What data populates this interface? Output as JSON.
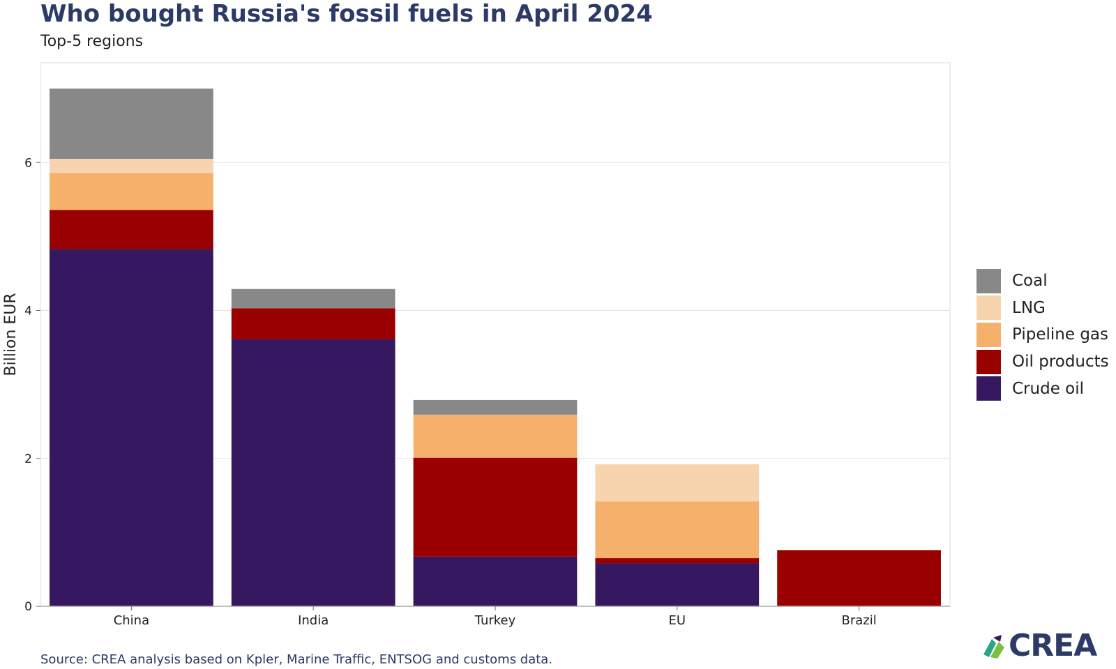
{
  "title": "Who bought Russia's fossil fuels in April 2024",
  "subtitle": "Top-5 regions",
  "source": "Source: CREA analysis based on Kpler, Marine Traffic, ENTSOG and customs data.",
  "logo_text": "CREA",
  "colors": {
    "coal": "#888888",
    "lng": "#f7d4ae",
    "pipeline_gas": "#f5b06b",
    "oil_products": "#990000",
    "crude_oil": "#35185f",
    "title": "#2b3a67",
    "grid": "#e3e3e3"
  },
  "chart_data": {
    "type": "bar",
    "stacked": true,
    "categories": [
      "China",
      "India",
      "Turkey",
      "EU",
      "Brazil"
    ],
    "ylabel": "Billion EUR",
    "xlabel": "",
    "ylim": [
      0,
      7.35
    ],
    "yticks": [
      0,
      2,
      4,
      6
    ],
    "grid": true,
    "legend_position": "right",
    "legend_order": [
      "Coal",
      "LNG",
      "Pipeline gas",
      "Oil products",
      "Crude oil"
    ],
    "series": [
      {
        "name": "Crude oil",
        "color": "#35185f",
        "values": [
          4.83,
          3.61,
          0.67,
          0.58,
          0
        ]
      },
      {
        "name": "Oil products",
        "color": "#990000",
        "values": [
          0.53,
          0.42,
          1.34,
          0.07,
          0.76
        ]
      },
      {
        "name": "Pipeline gas",
        "color": "#f5b06b",
        "values": [
          0.5,
          0,
          0.58,
          0.77,
          0
        ]
      },
      {
        "name": "LNG",
        "color": "#f7d4ae",
        "values": [
          0.19,
          0,
          0,
          0.5,
          0
        ]
      },
      {
        "name": "Coal",
        "color": "#888888",
        "values": [
          0.95,
          0.26,
          0.2,
          0,
          0
        ]
      }
    ]
  }
}
